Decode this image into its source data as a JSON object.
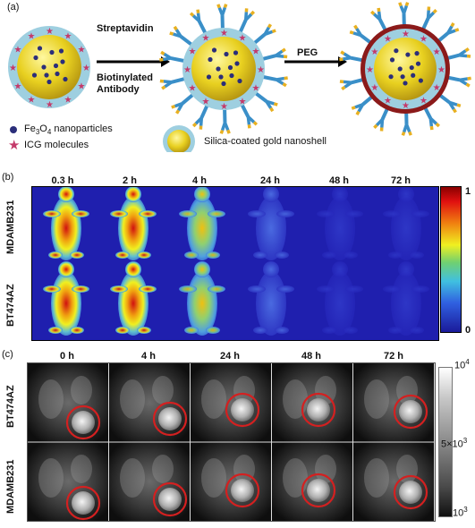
{
  "panel_a": {
    "label": "(a)",
    "step1_text_line1": "Streptavidin",
    "step1_text_line2": "Biotinylated",
    "step1_text_line3": "Antibody",
    "step2_text": "PEG",
    "legend": {
      "nanoparticles_prefix": "Fe",
      "nanoparticles_sub1": "3",
      "nanoparticles_mid": "O",
      "nanoparticles_sub2": "4",
      "nanoparticles_suffix": " nanoparticles",
      "icg": "ICG molecules",
      "shell": "Silica-coated gold nanoshell"
    }
  },
  "panel_b": {
    "label": "(b)",
    "times": [
      "0.3 h",
      "2 h",
      "4 h",
      "24 h",
      "48 h",
      "72 h"
    ],
    "rows": [
      "MDAMB231",
      "BT474AZ"
    ],
    "colorbar_max": "1",
    "colorbar_min": "0"
  },
  "panel_c": {
    "label": "(c)",
    "times": [
      "0 h",
      "4 h",
      "24 h",
      "48 h",
      "72 h"
    ],
    "rows": [
      "BT474AZ",
      "MDAMB231"
    ],
    "scale_top_base": "10",
    "scale_top_exp": "4",
    "scale_mid_base": "5×10",
    "scale_mid_exp": "3",
    "scale_bot_base": "10",
    "scale_bot_exp": "3"
  },
  "colors": {
    "gold": "#e8d020",
    "silica": "#9ecfe0",
    "fe3o4": "#2b2e7a",
    "icg": "#c43a6a",
    "peg": "#8b1a1a",
    "antibody_stem": "#3a8fc8",
    "antibody_tip": "#e8b020"
  }
}
